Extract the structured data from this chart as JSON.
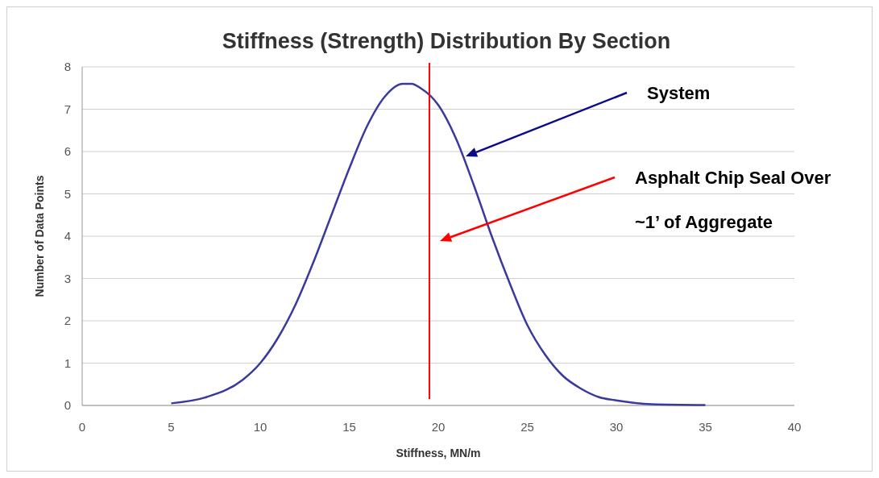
{
  "chart_data": {
    "type": "line",
    "title": "Stiffness (Strength) Distribution By Section",
    "xlabel": "Stiffness, MN/m",
    "ylabel": "Number of Data Points",
    "x": [
      5,
      7,
      9,
      10,
      11,
      12,
      13,
      14,
      15,
      16,
      17,
      18,
      18.5,
      19,
      20,
      21,
      22,
      23,
      24,
      25,
      26,
      27,
      28,
      29,
      30,
      32,
      35
    ],
    "series": [
      {
        "color": "#3a3a9e",
        "values": [
          0.05,
          0.2,
          0.6,
          1.0,
          1.6,
          2.4,
          3.4,
          4.5,
          5.6,
          6.6,
          7.3,
          7.6,
          7.6,
          7.5,
          7.1,
          6.3,
          5.2,
          4.0,
          2.9,
          1.9,
          1.2,
          0.7,
          0.4,
          0.2,
          0.12,
          0.03,
          0.01
        ]
      }
    ],
    "xlim": [
      0,
      40
    ],
    "xticks": [
      0,
      5,
      10,
      15,
      20,
      25,
      30,
      35,
      40
    ],
    "ylim": [
      0,
      8
    ],
    "yticks": [
      0,
      1,
      2,
      3,
      4,
      5,
      6,
      7,
      8
    ],
    "grid": "y",
    "ref_lines": [
      {
        "axis": "x",
        "value": 19.5,
        "color": "#ff0000"
      }
    ],
    "annotations": [
      "System",
      "Asphalt Chip Seal Over",
      "~1’ of Aggregate"
    ]
  }
}
